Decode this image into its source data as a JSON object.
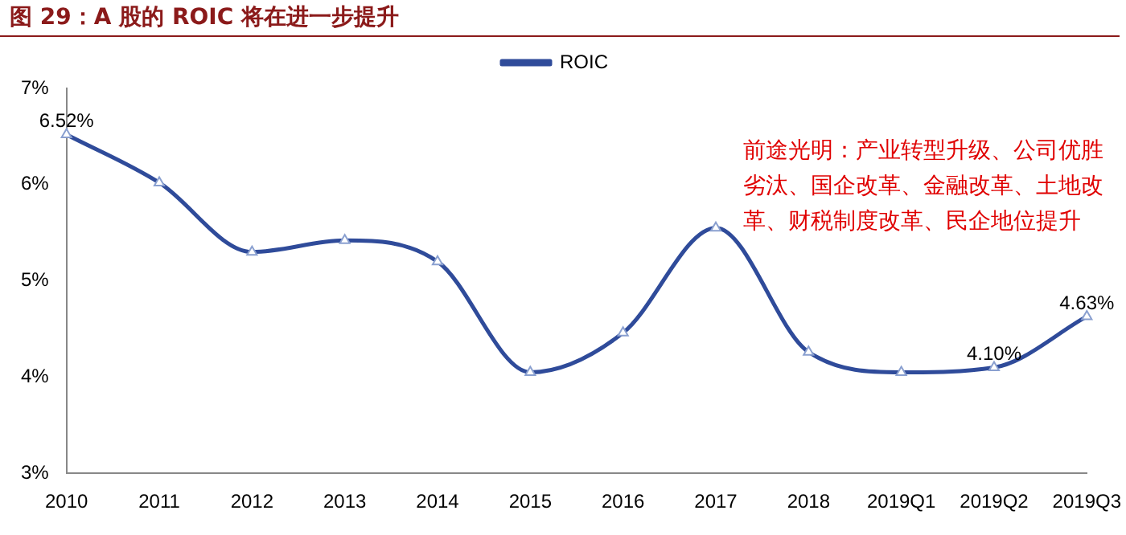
{
  "chart_data": {
    "type": "line",
    "title": "图 29：A 股的 ROIC 将在进一步提升",
    "categories": [
      "2010",
      "2011",
      "2012",
      "2013",
      "2014",
      "2015",
      "2016",
      "2017",
      "2018",
      "2019Q1",
      "2019Q2",
      "2019Q3"
    ],
    "series": [
      {
        "name": "ROIC",
        "color": "#2f4b9a",
        "values": [
          6.52,
          6.02,
          5.3,
          5.42,
          5.2,
          4.05,
          4.46,
          5.55,
          4.26,
          4.05,
          4.1,
          4.63
        ],
        "value_labels": [
          "6.52%",
          null,
          null,
          null,
          null,
          null,
          null,
          null,
          null,
          null,
          "4.10%",
          "4.63%"
        ]
      }
    ],
    "ylim": [
      3,
      7
    ],
    "yticks": [
      {
        "value": 3,
        "label": "3%"
      },
      {
        "value": 4,
        "label": "4%"
      },
      {
        "value": 5,
        "label": "5%"
      },
      {
        "value": 6,
        "label": "6%"
      },
      {
        "value": 7,
        "label": "7%"
      }
    ],
    "grid": false,
    "legend": "top",
    "marker": "triangle",
    "line_style": "solid",
    "annotations": [
      "前途光明：产业转型升级、公司优胜劣汰、国企改革、金融改革、土地改革、财税制度改革、民企地位提升"
    ]
  }
}
